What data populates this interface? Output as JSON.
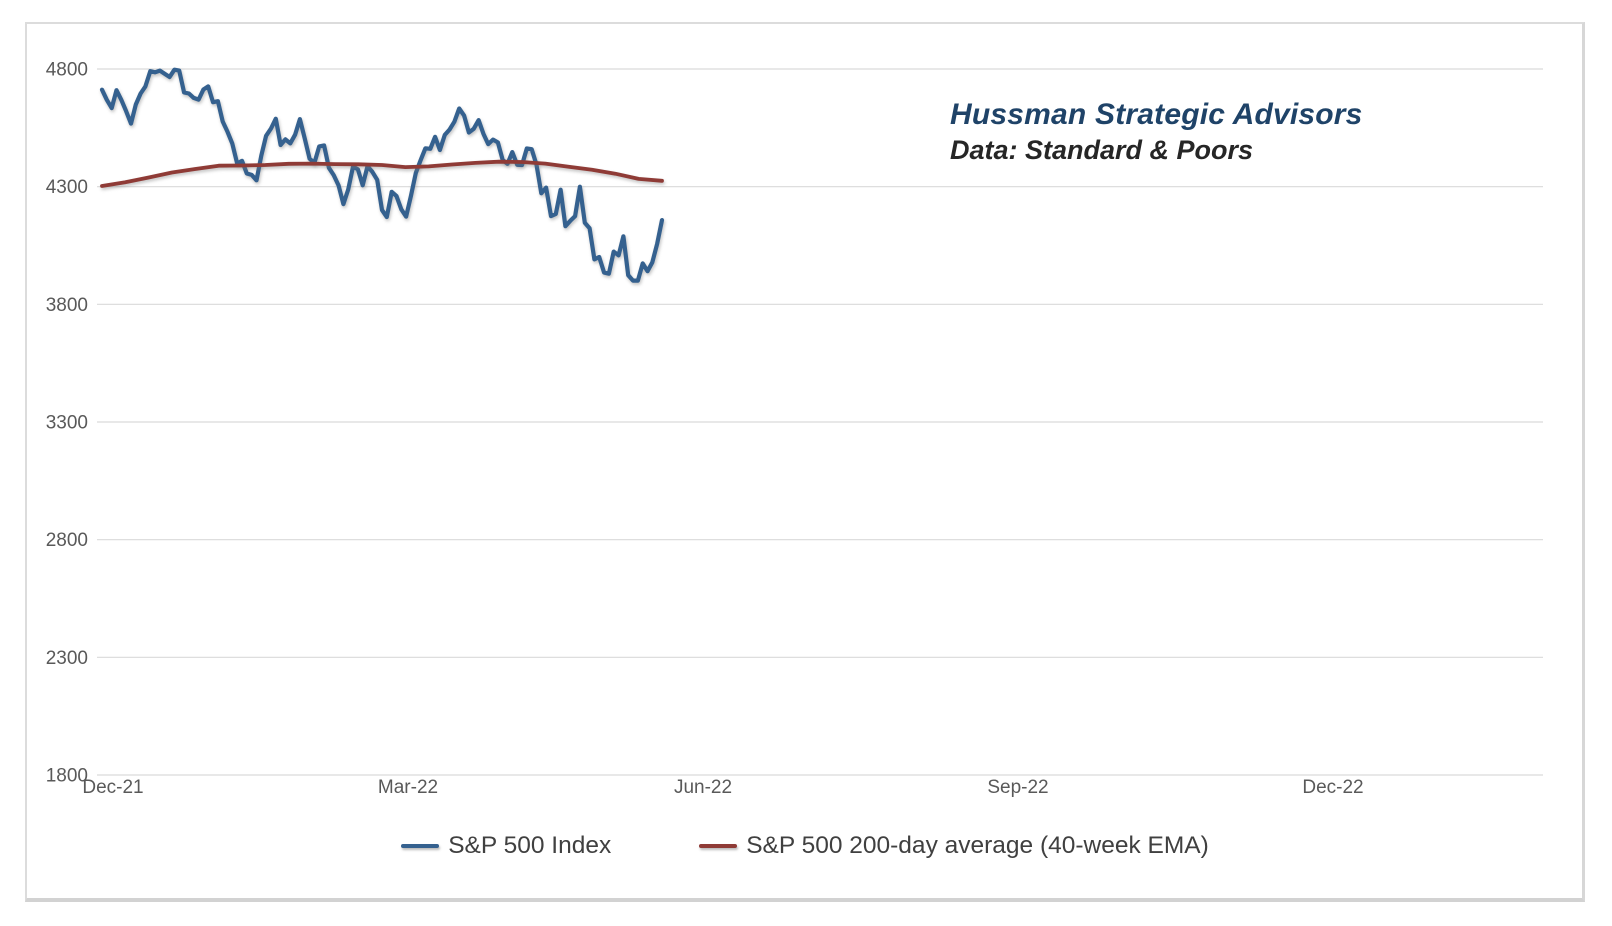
{
  "annotation": {
    "line1": "Hussman Strategic Advisors",
    "line2": "Data: Standard & Poors",
    "line1_color": "#1f4368",
    "line2_color": "#262626"
  },
  "legend": [
    {
      "label": "S&P 500 Index",
      "color": "#35618f"
    },
    {
      "label": "S&P 500 200-day average (40-week EMA)",
      "color": "#8f3b36"
    }
  ],
  "chart_data": {
    "type": "line",
    "title": "",
    "xlabel": "",
    "ylabel": "",
    "grid": "horizontal-only",
    "gridline_color": "#d9d9d9",
    "legend_position": "bottom",
    "ylim": [
      1800,
      4800
    ],
    "y_ticks": [
      "4800",
      "4300",
      "3800",
      "3300",
      "2800",
      "2300",
      "1800"
    ],
    "y_tick_values": [
      4800,
      4300,
      3800,
      3300,
      2800,
      2300,
      1800
    ],
    "x_ticks": [
      "Dec-21",
      "Mar-22",
      "Jun-22",
      "Sep-22",
      "Dec-22"
    ],
    "x_axis_note": "date axis Dec-2021 through early 2023; plotted data covers 10-Dec-2021 to 27-May-2022 only (about 40% of axis width)",
    "series": [
      {
        "name": "S&P 500 Index",
        "color": "#35618f",
        "stroke_width": 4.2,
        "frequency": "daily (trading days, 10-Dec-2021 to 27-May-2022)",
        "values": [
          4712,
          4669,
          4634,
          4710,
          4669,
          4621,
          4568,
          4649,
          4696,
          4726,
          4791,
          4786,
          4793,
          4779,
          4766,
          4797,
          4793,
          4700,
          4696,
          4677,
          4670,
          4713,
          4726,
          4659,
          4663,
          4577,
          4533,
          4483,
          4398,
          4410,
          4356,
          4350,
          4327,
          4432,
          4516,
          4547,
          4589,
          4477,
          4501,
          4484,
          4521,
          4587,
          4504,
          4419,
          4401,
          4471,
          4475,
          4380,
          4349,
          4305,
          4226,
          4288,
          4385,
          4374,
          4306,
          4387,
          4363,
          4329,
          4201,
          4171,
          4278,
          4260,
          4204,
          4173,
          4262,
          4358,
          4412,
          4463,
          4461,
          4512,
          4456,
          4520,
          4543,
          4576,
          4632,
          4602,
          4530,
          4546,
          4583,
          4525,
          4481,
          4500,
          4488,
          4413,
          4397,
          4447,
          4393,
          4392,
          4462,
          4459,
          4393,
          4272,
          4296,
          4175,
          4184,
          4287,
          4132,
          4155,
          4175,
          4300,
          4147,
          4123,
          3991,
          4001,
          3935,
          3930,
          4024,
          4008,
          4089,
          3924,
          3901,
          3901,
          3974,
          3941,
          3978,
          4058,
          4158
        ]
      },
      {
        "name": "S&P 500 200-day average (40-week EMA)",
        "color": "#8f3b36",
        "stroke_width": 3.8,
        "frequency": "weekly (10-Dec-2021 to 27-May-2022)",
        "values": [
          4303,
          4319,
          4339,
          4360,
          4375,
          4389,
          4390,
          4392,
          4397,
          4398,
          4396,
          4395,
          4392,
          4383,
          4386,
          4394,
          4401,
          4406,
          4405,
          4398,
          4385,
          4372,
          4355,
          4333,
          4325
        ]
      }
    ]
  }
}
